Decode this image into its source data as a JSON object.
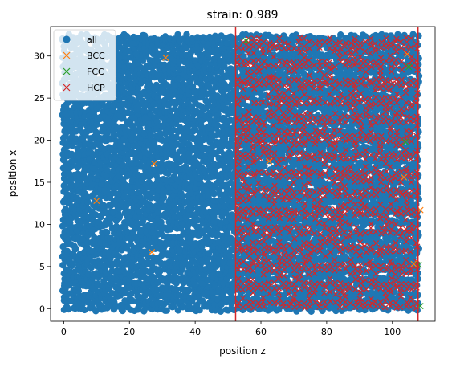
{
  "chart_data": {
    "type": "scatter",
    "title": "strain: 0.989",
    "xlabel": "position z",
    "ylabel": "position x",
    "xlim": [
      -4,
      113
    ],
    "ylim": [
      -1.5,
      33.5
    ],
    "xticks": [
      0,
      20,
      40,
      60,
      80,
      100
    ],
    "yticks": [
      0,
      5,
      10,
      15,
      20,
      25,
      30
    ],
    "grid": false,
    "legend_position": "top-left",
    "vlines": [
      {
        "x": 52.3,
        "color": "#d62728"
      },
      {
        "x": 107.8,
        "color": "#d62728"
      }
    ],
    "series": [
      {
        "name": "all",
        "marker": "circle",
        "color": "#1f77b4",
        "region": {
          "x": [
            0,
            108.5
          ],
          "y": [
            0,
            32.3
          ]
        },
        "layers_x_spacing": 1.55,
        "layers_y_spacing": 2.2
      },
      {
        "name": "BCC",
        "marker": "x",
        "color": "#ff7f0e",
        "points": [
          [
            31,
            29.8
          ],
          [
            27.5,
            17.2
          ],
          [
            10,
            12.8
          ],
          [
            26.8,
            6.7
          ],
          [
            104.5,
            30.2
          ],
          [
            103.5,
            15.6
          ],
          [
            106.5,
            5.3
          ],
          [
            108.5,
            11.7
          ],
          [
            62.5,
            17.5
          ]
        ]
      },
      {
        "name": "FCC",
        "marker": "x",
        "color": "#2ca02c",
        "points": [
          [
            55.5,
            31.8
          ],
          [
            105,
            28.7
          ],
          [
            104,
            19.8
          ],
          [
            108,
            5.2
          ],
          [
            108.5,
            0.3
          ]
        ]
      },
      {
        "name": "HCP",
        "marker": "x",
        "color": "#d62728",
        "region": {
          "x": [
            52.5,
            107.5
          ],
          "y": [
            0,
            32.2
          ]
        },
        "layers_x_spacing": 1.55,
        "layers_y_spacing": 2.2
      }
    ]
  }
}
